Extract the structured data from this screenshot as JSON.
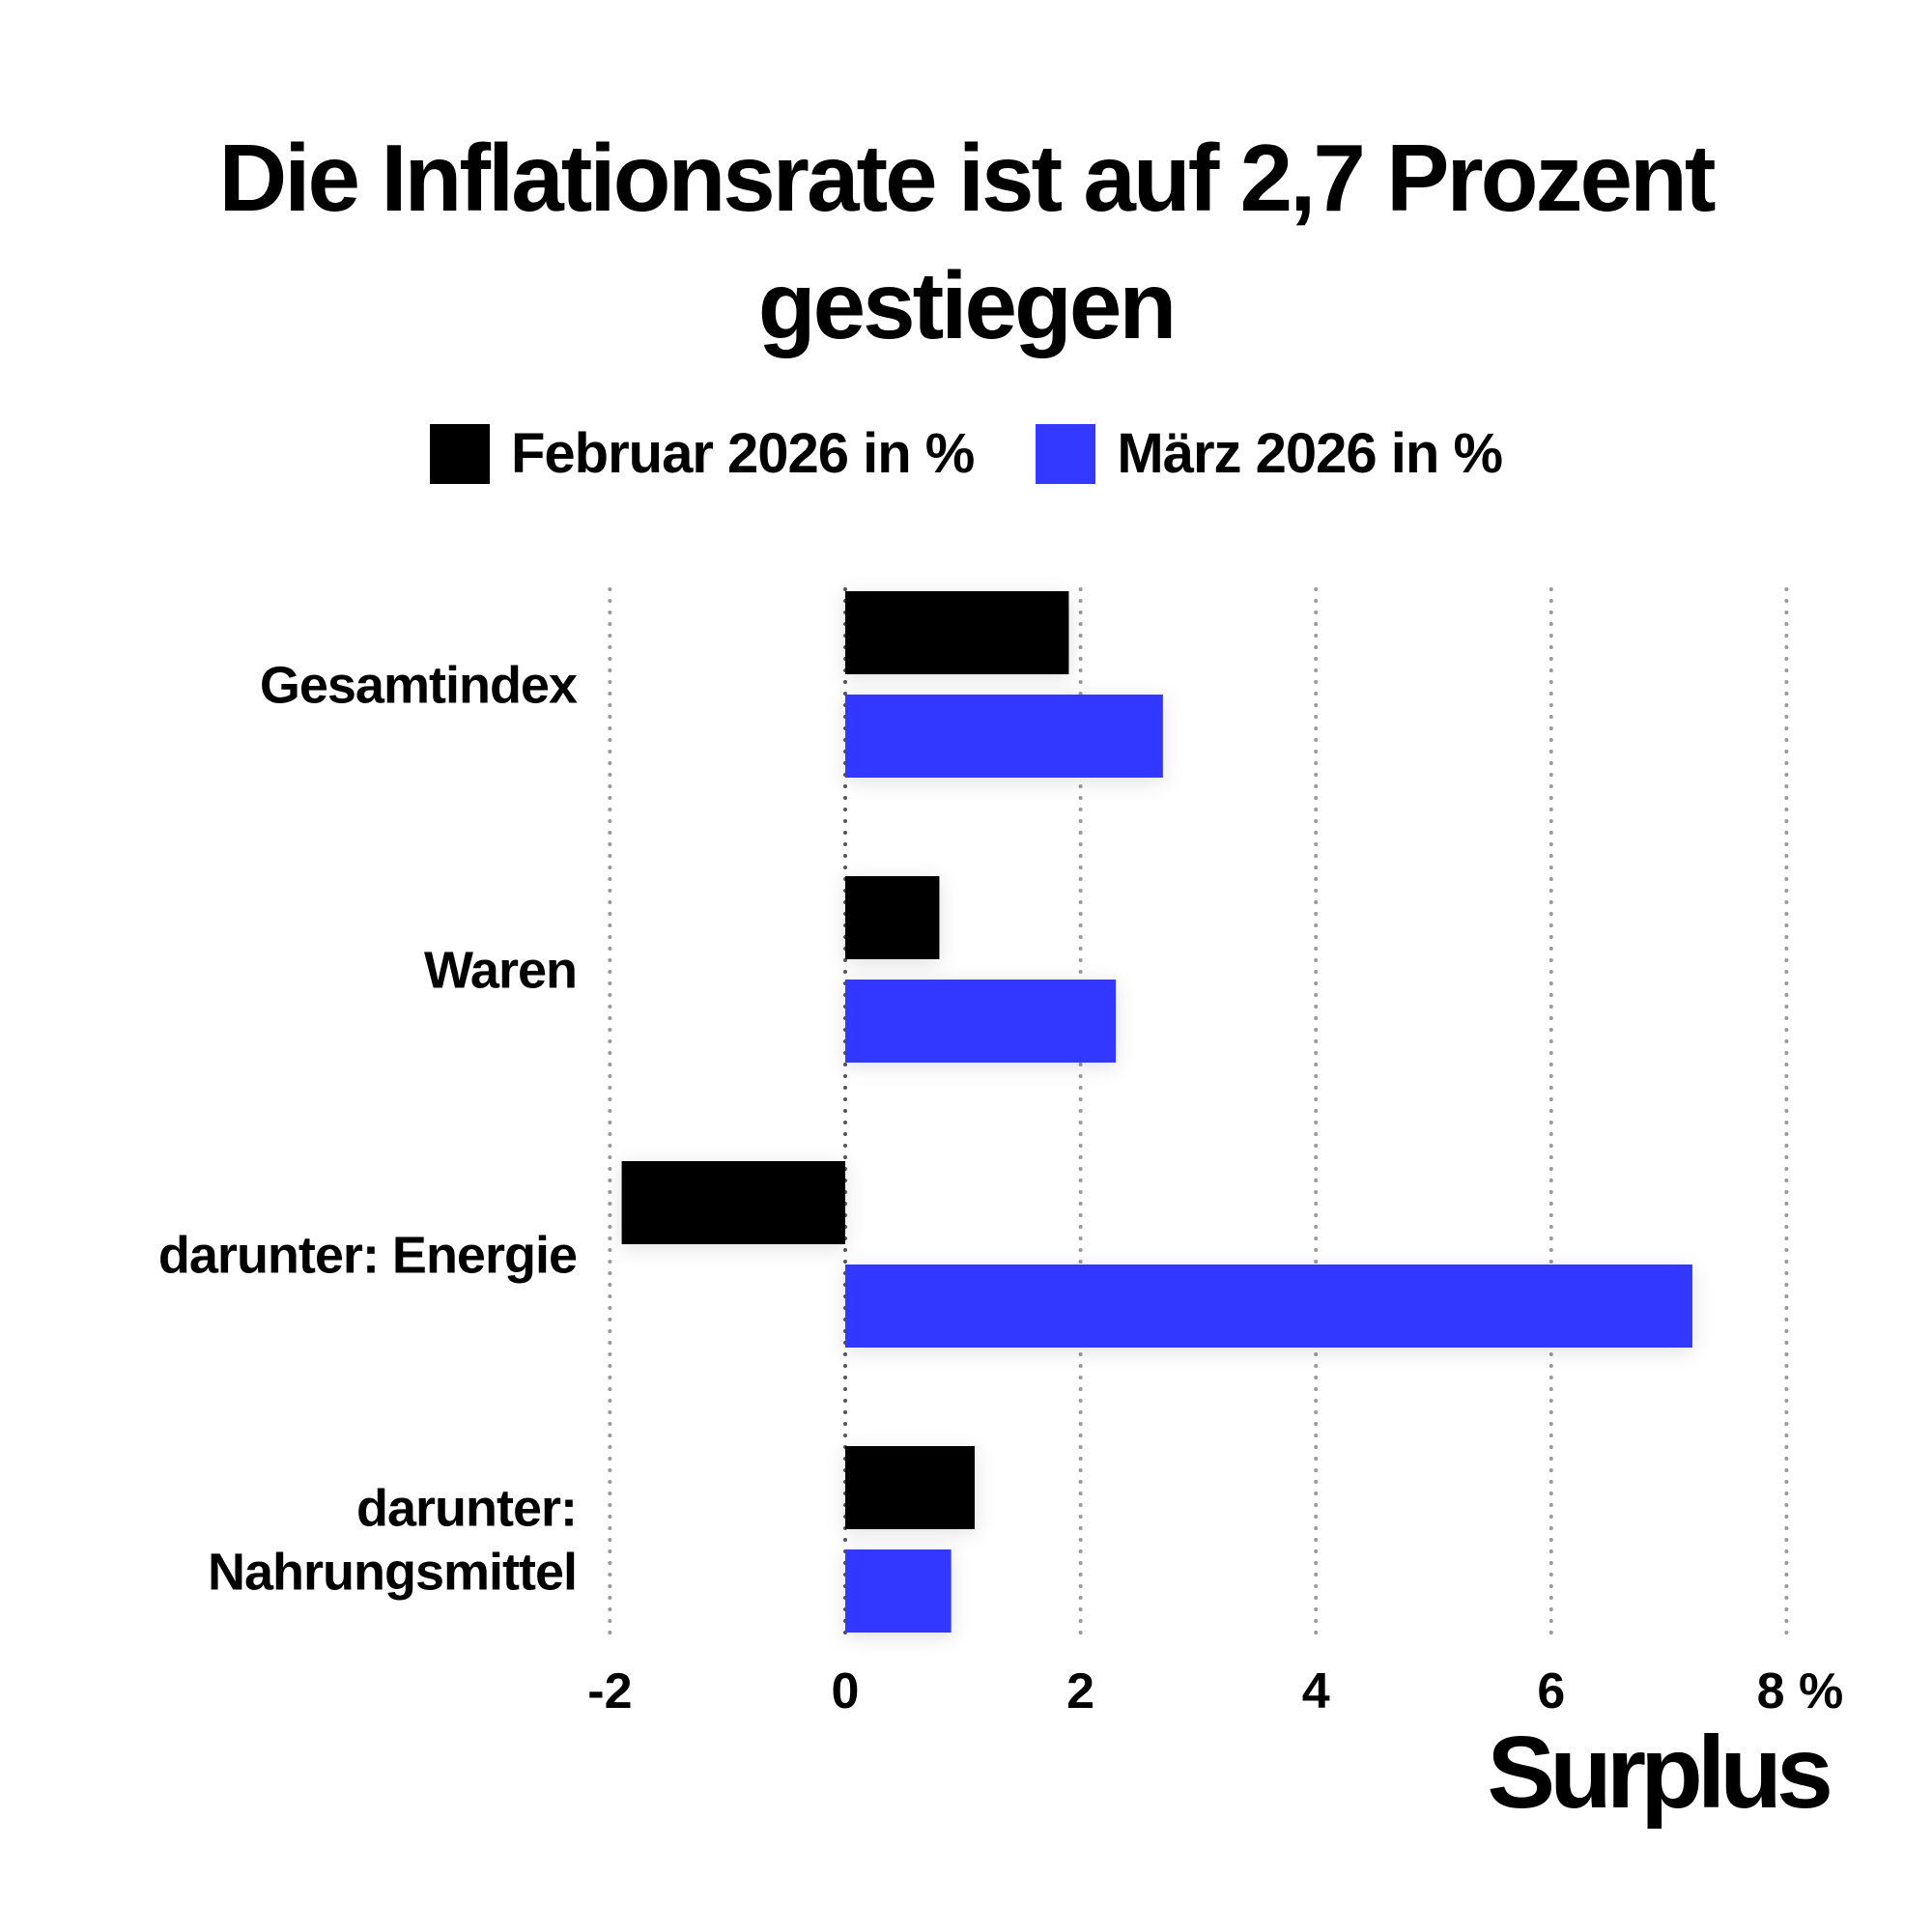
{
  "chart_data": {
    "type": "bar",
    "orientation": "horizontal",
    "title": "Die Inflationsrate ist auf 2,7 Prozent gestiegen",
    "title_lines": [
      "Die Inflationsrate ist auf 2,7 Prozent",
      "gestiegen"
    ],
    "categories": [
      "Gesamtindex",
      "Waren",
      "darunter: Energie",
      "darunter: Nahrungsmittel"
    ],
    "category_lines": [
      [
        "Gesamtindex"
      ],
      [
        "Waren"
      ],
      [
        "darunter: Energie"
      ],
      [
        "darunter:",
        "Nahrungsmittel"
      ]
    ],
    "series": [
      {
        "name": "Februar 2026 in %",
        "color": "#000000",
        "values": [
          1.9,
          0.8,
          -1.9,
          1.1
        ]
      },
      {
        "name": "März 2026 in %",
        "color": "#3339ff",
        "values": [
          2.7,
          2.3,
          7.2,
          0.9
        ]
      }
    ],
    "xlim": [
      -2,
      8
    ],
    "xticks": [
      -2,
      0,
      2,
      4,
      6,
      8
    ],
    "xtick_labels": [
      "-2",
      "0",
      "2",
      "4",
      "6",
      "8 %"
    ],
    "grid": "vertical dotted",
    "legend_position": "top"
  },
  "branding": {
    "logo": "Surplus"
  }
}
